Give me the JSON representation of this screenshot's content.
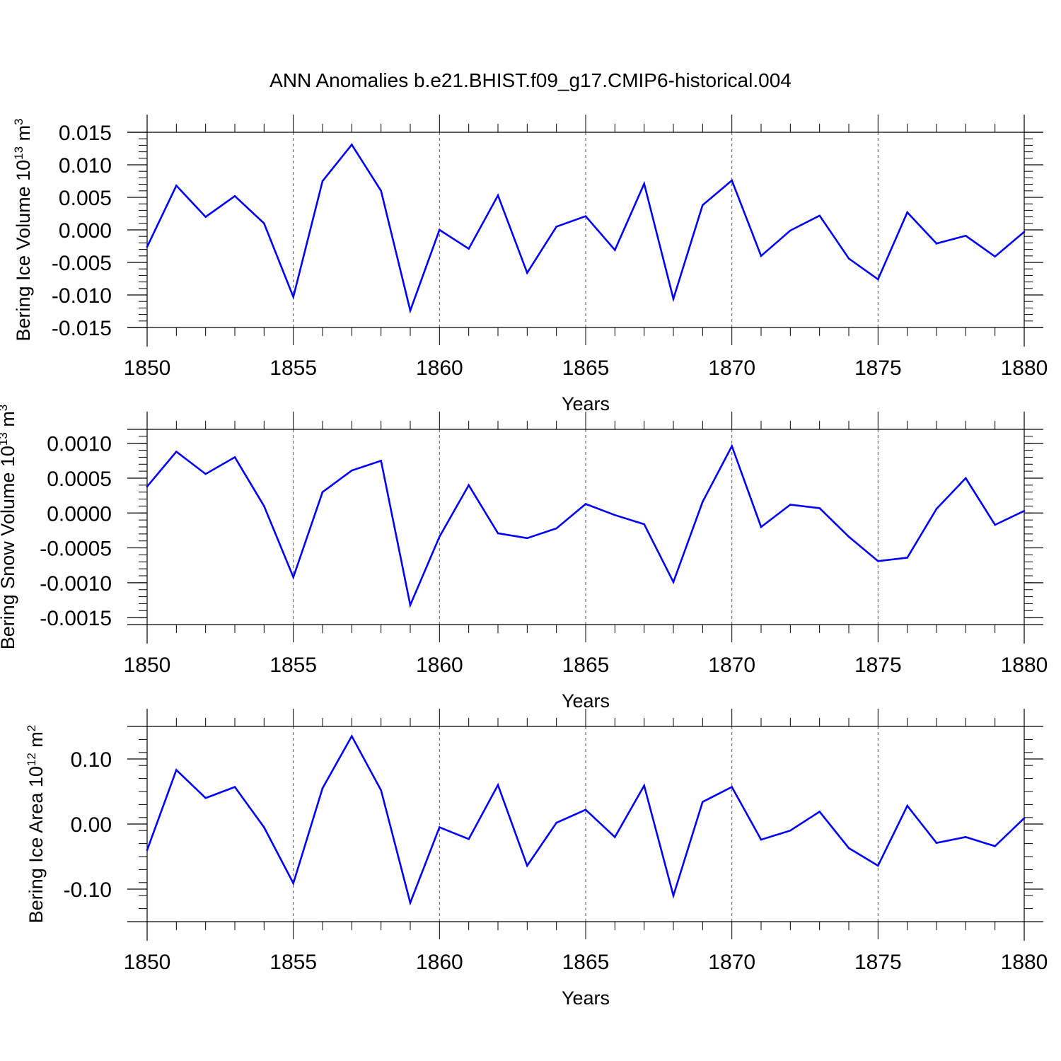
{
  "title": "ANN Anomalies b.e21.BHIST.f09_g17.CMIP6-historical.004",
  "chart_data": [
    {
      "type": "line",
      "ylabel": {
        "text": "Bering Ice Volume 10",
        "sup": "13",
        "unit": " m",
        "unit_sup": "3"
      },
      "xlabel": "Years",
      "xlim": [
        1850,
        1880
      ],
      "ylim": [
        -0.015,
        0.015
      ],
      "x_major_ticks": [
        1850,
        1855,
        1860,
        1865,
        1870,
        1875,
        1880
      ],
      "x_tick_labels": [
        "1850",
        "1855",
        "1860",
        "1865",
        "1870",
        "1875",
        "1880"
      ],
      "y_major_ticks": [
        -0.015,
        -0.01,
        -0.005,
        0.0,
        0.005,
        0.01,
        0.015
      ],
      "y_tick_labels": [
        "-0.015",
        "-0.010",
        "-0.005",
        "0.000",
        "0.005",
        "0.010",
        "0.015"
      ],
      "y_minor_step": 0.001,
      "grid": "x-major dashed",
      "line_color": "#0000ff",
      "x": [
        1850,
        1851,
        1852,
        1853,
        1854,
        1855,
        1856,
        1857,
        1858,
        1859,
        1860,
        1861,
        1862,
        1863,
        1864,
        1865,
        1866,
        1867,
        1868,
        1869,
        1870,
        1871,
        1872,
        1873,
        1874,
        1875,
        1876,
        1877,
        1878,
        1879,
        1880
      ],
      "values": [
        -0.0026,
        0.0068,
        0.002,
        0.0052,
        0.001,
        -0.0103,
        0.0075,
        0.0131,
        0.006,
        -0.0124,
        0.0,
        -0.0029,
        0.0053,
        -0.0066,
        0.0005,
        0.0021,
        -0.0031,
        0.0071,
        -0.0106,
        0.0038,
        0.0076,
        -0.004,
        -0.0001,
        0.0022,
        -0.0044,
        -0.0076,
        0.0027,
        -0.0021,
        -0.0009,
        -0.0041,
        -0.0003
      ]
    },
    {
      "type": "line",
      "ylabel": {
        "text": "Bering Snow Volume 10",
        "sup": "13",
        "unit": " m",
        "unit_sup": "3"
      },
      "xlabel": "Years",
      "xlim": [
        1850,
        1880
      ],
      "ylim": [
        -0.0016,
        0.0012
      ],
      "x_major_ticks": [
        1850,
        1855,
        1860,
        1865,
        1870,
        1875,
        1880
      ],
      "x_tick_labels": [
        "1850",
        "1855",
        "1860",
        "1865",
        "1870",
        "1875",
        "1880"
      ],
      "y_major_ticks": [
        -0.0015,
        -0.001,
        -0.0005,
        0.0,
        0.0005,
        0.001
      ],
      "y_tick_labels": [
        "-0.0015",
        "-0.0010",
        "-0.0005",
        "0.0000",
        "0.0005",
        "0.0010"
      ],
      "y_minor_step": 0.0001,
      "grid": "x-major dashed",
      "line_color": "#0000ff",
      "x": [
        1850,
        1851,
        1852,
        1853,
        1854,
        1855,
        1856,
        1857,
        1858,
        1859,
        1860,
        1861,
        1862,
        1863,
        1864,
        1865,
        1866,
        1867,
        1868,
        1869,
        1870,
        1871,
        1872,
        1873,
        1874,
        1875,
        1876,
        1877,
        1878,
        1879,
        1880
      ],
      "values": [
        0.00038,
        0.00088,
        0.00056,
        0.0008,
        0.0001,
        -0.00092,
        0.0003,
        0.00061,
        0.00075,
        -0.00132,
        -0.00034,
        0.0004,
        -0.00029,
        -0.00036,
        -0.00022,
        0.00013,
        -3e-05,
        -0.00016,
        -0.00099,
        0.00016,
        0.00096,
        -0.0002,
        0.00012,
        7e-05,
        -0.00034,
        -0.00069,
        -0.00064,
        6e-05,
        0.0005,
        -0.00017,
        3e-05
      ]
    },
    {
      "type": "line",
      "ylabel": {
        "text": "Bering Ice Area 10",
        "sup": "12",
        "unit": " m",
        "unit_sup": "2"
      },
      "xlabel": "Years",
      "xlim": [
        1850,
        1880
      ],
      "ylim": [
        -0.15,
        0.15
      ],
      "x_major_ticks": [
        1850,
        1855,
        1860,
        1865,
        1870,
        1875,
        1880
      ],
      "x_tick_labels": [
        "1850",
        "1855",
        "1860",
        "1865",
        "1870",
        "1875",
        "1880"
      ],
      "y_major_ticks": [
        -0.1,
        0.0,
        0.1
      ],
      "y_tick_labels": [
        "-0.10",
        "0.00",
        "0.10"
      ],
      "y_minor_step": 0.02,
      "grid": "x-major dashed",
      "line_color": "#0000ff",
      "x": [
        1850,
        1851,
        1852,
        1853,
        1854,
        1855,
        1856,
        1857,
        1858,
        1859,
        1860,
        1861,
        1862,
        1863,
        1864,
        1865,
        1866,
        1867,
        1868,
        1869,
        1870,
        1871,
        1872,
        1873,
        1874,
        1875,
        1876,
        1877,
        1878,
        1879,
        1880
      ],
      "values": [
        -0.04,
        0.083,
        0.04,
        0.057,
        -0.005,
        -0.091,
        0.055,
        0.135,
        0.052,
        -0.121,
        -0.005,
        -0.023,
        0.06,
        -0.064,
        0.002,
        0.022,
        -0.02,
        0.059,
        -0.11,
        0.034,
        0.057,
        -0.024,
        -0.01,
        0.019,
        -0.037,
        -0.064,
        0.028,
        -0.029,
        -0.02,
        -0.034,
        0.009
      ]
    }
  ]
}
